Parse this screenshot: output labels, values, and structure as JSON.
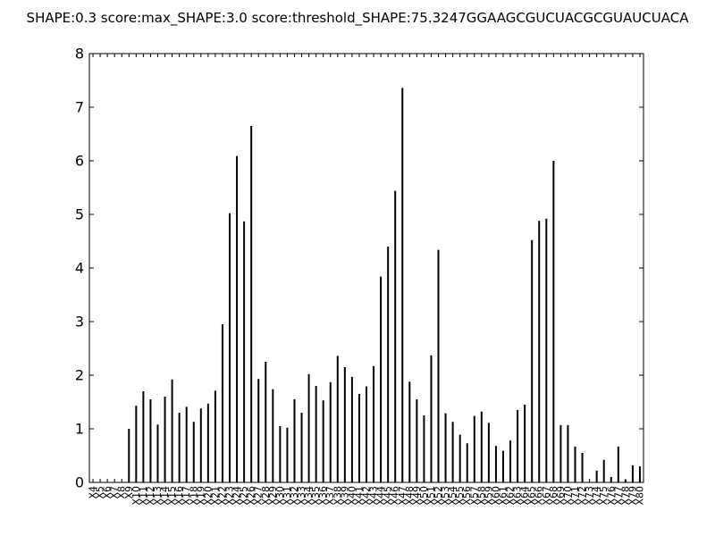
{
  "chart_data": {
    "type": "bar",
    "title": "SHAPE:0.3 score:max_SHAPE:3.0 score:threshold_SHAPE:75.3247GGAAGCGUCUACGCGUAUCUACA",
    "xlabel": "",
    "ylabel": "",
    "ylim": [
      0,
      8
    ],
    "yticks": [
      0,
      1,
      2,
      3,
      4,
      5,
      6,
      7,
      8
    ],
    "grid": false,
    "categories": [
      "X4",
      "X5",
      "X6",
      "X7",
      "X8",
      "X9",
      "X10",
      "X11",
      "X12",
      "X13",
      "X14",
      "X15",
      "X16",
      "X17",
      "X18",
      "X19",
      "X20",
      "X21",
      "X22",
      "X23",
      "X24",
      "X25",
      "X26",
      "X27",
      "X28",
      "X29",
      "X30",
      "X31",
      "X32",
      "X33",
      "X34",
      "X35",
      "X36",
      "X37",
      "X38",
      "X39",
      "X40",
      "X41",
      "X42",
      "X43",
      "X44",
      "X45",
      "X46",
      "X47",
      "X48",
      "X49",
      "X50",
      "X51",
      "X52",
      "X53",
      "X54",
      "X55",
      "X56",
      "X57",
      "X58",
      "X59",
      "X60",
      "X61",
      "X62",
      "X63",
      "X64",
      "X65",
      "X66",
      "X67",
      "X68",
      "X69",
      "X70",
      "X71",
      "X72",
      "X73",
      "X74",
      "X75",
      "X76",
      "X77",
      "X78",
      "X79",
      "X80"
    ],
    "values": [
      0,
      0,
      0,
      0,
      0,
      1.0,
      1.43,
      1.7,
      1.55,
      1.08,
      1.6,
      1.92,
      1.3,
      1.41,
      1.13,
      1.38,
      1.47,
      1.71,
      2.95,
      5.02,
      6.09,
      4.87,
      6.65,
      1.93,
      2.25,
      1.74,
      1.05,
      1.02,
      1.55,
      1.3,
      2.02,
      1.8,
      1.53,
      1.87,
      2.36,
      2.15,
      1.97,
      1.65,
      1.79,
      2.17,
      3.84,
      4.4,
      5.44,
      7.36,
      1.88,
      1.55,
      1.25,
      2.37,
      4.34,
      1.29,
      1.13,
      0.89,
      0.73,
      1.24,
      1.32,
      1.11,
      0.68,
      0.59,
      0.78,
      1.35,
      1.45,
      4.52,
      4.88,
      4.92,
      6.0,
      1.07,
      1.07,
      0.67,
      0.55,
      0,
      0.22,
      0.42,
      0.1,
      0.67,
      0.05,
      0.32,
      0.3
    ]
  }
}
